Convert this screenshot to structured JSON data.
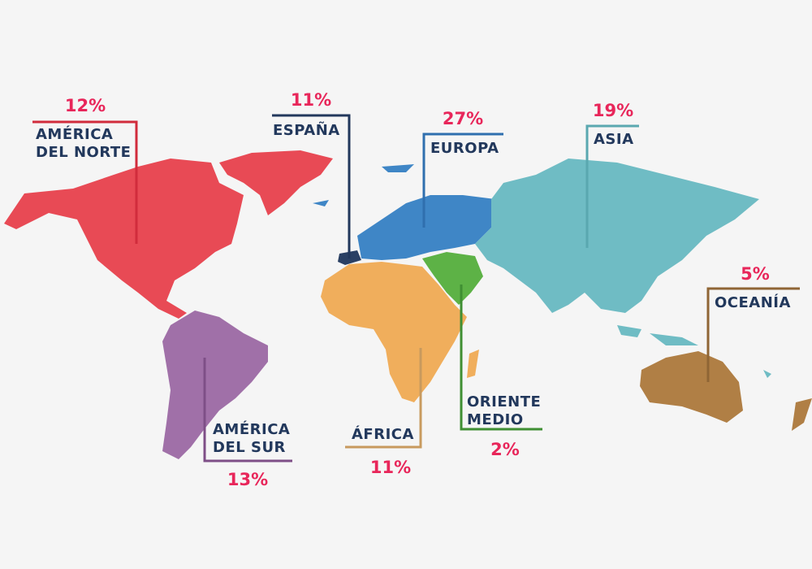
{
  "colors": {
    "percent_text": "#e8265a",
    "label_text": "#22385c",
    "north_america": "#e84a55",
    "south_america": "#a070a8",
    "spain": "#2a4064",
    "europe": "#3f86c6",
    "asia": "#6fbcc4",
    "africa": "#f0ae5c",
    "middle_east": "#5db246",
    "oceania": "#b07f45"
  },
  "regions": [
    {
      "id": "north_america",
      "label_line1": "AMÉRICA",
      "label_line2": "DEL NORTE",
      "percent": "12%"
    },
    {
      "id": "spain",
      "label_line1": "ESPAÑA",
      "percent": "11%"
    },
    {
      "id": "europe",
      "label_line1": "EUROPA",
      "percent": "27%"
    },
    {
      "id": "asia",
      "label_line1": "ASIA",
      "percent": "19%"
    },
    {
      "id": "oceania",
      "label_line1": "OCEANÍA",
      "percent": "5%"
    },
    {
      "id": "south_america",
      "label_line1": "AMÉRICA",
      "label_line2": "DEL SUR",
      "percent": "13%"
    },
    {
      "id": "africa",
      "label_line1": "ÁFRICA",
      "percent": "11%"
    },
    {
      "id": "middle_east",
      "label_line1": "ORIENTE",
      "label_line2": "MEDIO",
      "percent": "2%"
    }
  ]
}
